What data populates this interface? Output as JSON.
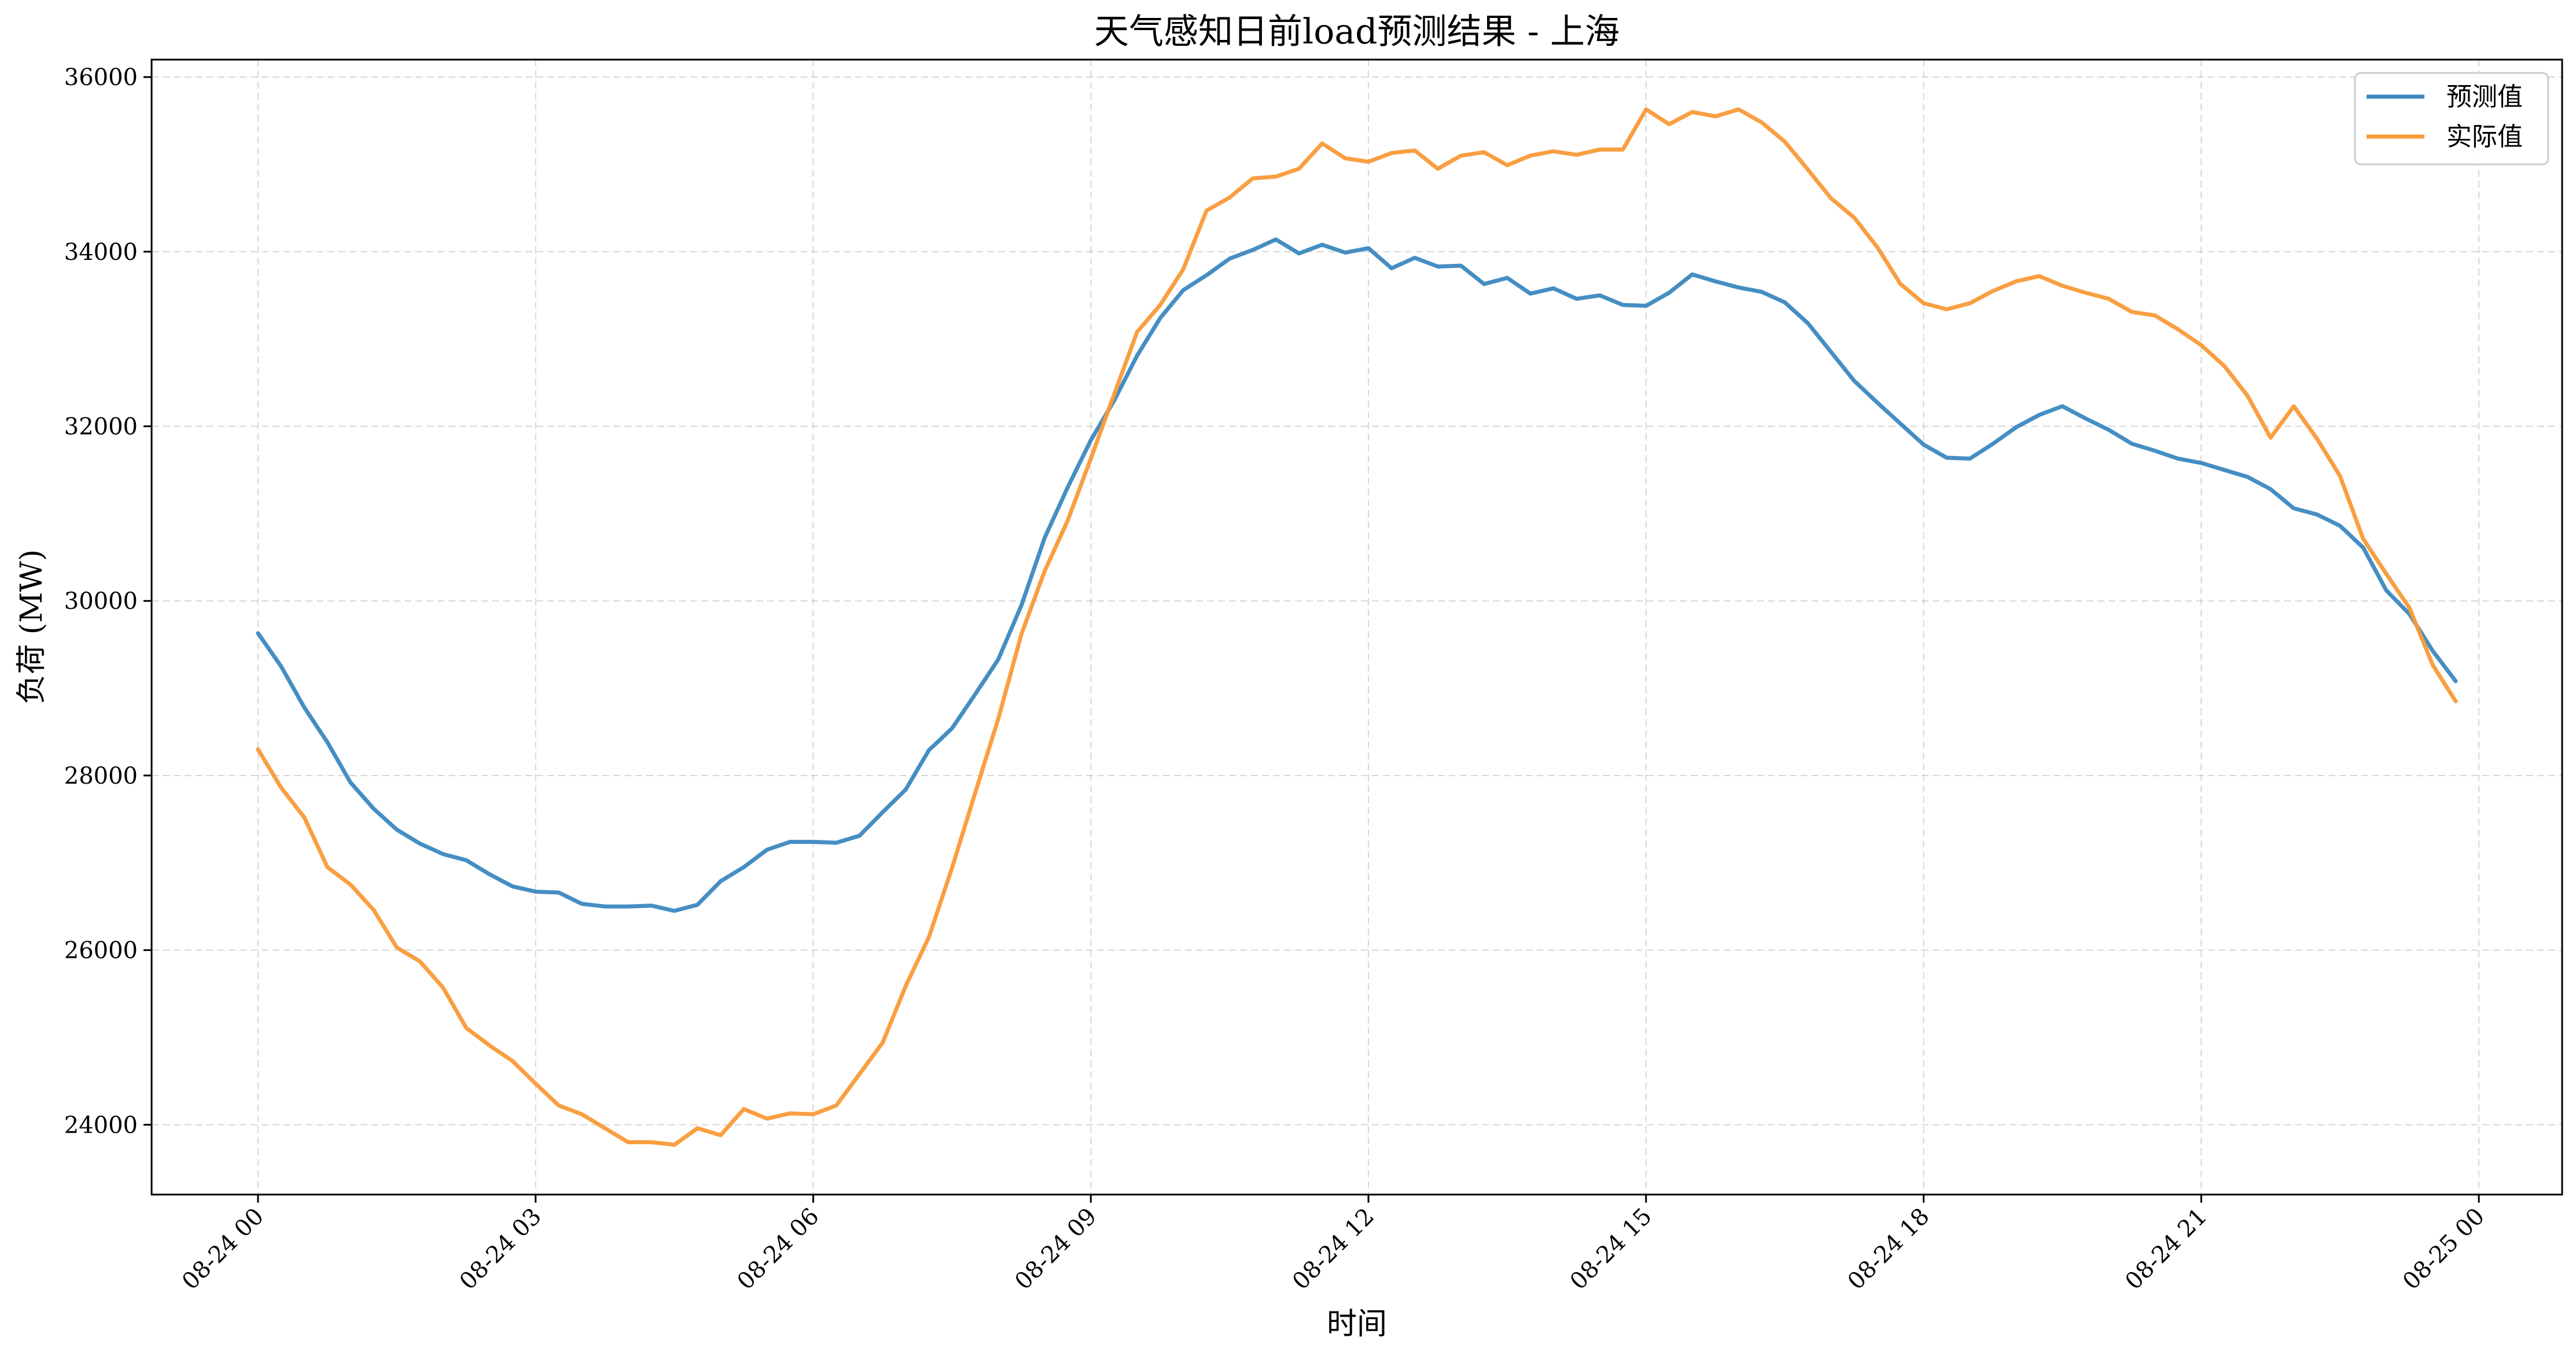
{
  "chart_data": {
    "type": "line",
    "title": "天气感知日前load预测结果 - 上海",
    "xlabel": "时间",
    "ylabel": "负荷 (MW)",
    "x_ticks": [
      "08-24 00",
      "08-24 03",
      "08-24 06",
      "08-24 09",
      "08-24 12",
      "08-24 15",
      "08-24 18",
      "08-24 21",
      "08-25 00"
    ],
    "y_ticks": [
      "24000",
      "26000",
      "28000",
      "30000",
      "32000",
      "34000",
      "36000"
    ],
    "ylim": [
      23200,
      36200
    ],
    "xlim_hours": [
      -1.15,
      24.9
    ],
    "interval_minutes": 15,
    "grid": true,
    "legend_position": "top-right",
    "colors": {
      "forecast": "#3b88c0",
      "actual": "#f99a38"
    },
    "series": [
      {
        "name": "预测值",
        "color": "#3b88c0",
        "values": [
          29630,
          29250,
          28780,
          28380,
          27920,
          27620,
          27380,
          27220,
          27100,
          27030,
          26870,
          26730,
          26670,
          26660,
          26530,
          26500,
          26500,
          26510,
          26450,
          26520,
          26790,
          26950,
          27150,
          27240,
          27240,
          27230,
          27310,
          27580,
          27840,
          28290,
          28540,
          28930,
          29330,
          29950,
          30720,
          31300,
          31840,
          32290,
          32810,
          33240,
          33560,
          33730,
          33920,
          34020,
          34140,
          33980,
          34080,
          33990,
          34040,
          33810,
          33930,
          33830,
          33840,
          33630,
          33700,
          33520,
          33580,
          33460,
          33500,
          33390,
          33380,
          33530,
          33740,
          33660,
          33590,
          33540,
          33420,
          33180,
          32850,
          32520,
          32270,
          32030,
          31790,
          31640,
          31630,
          31800,
          31990,
          32130,
          32230,
          32090,
          31960,
          31800,
          31720,
          31630,
          31580,
          31500,
          31420,
          31280,
          31060,
          30990,
          30860,
          30610,
          30120,
          29850,
          29430,
          29080
        ]
      },
      {
        "name": "实际值",
        "color": "#f99a38",
        "values": [
          28300,
          27860,
          27520,
          26950,
          26750,
          26460,
          26030,
          25870,
          25570,
          25110,
          24910,
          24730,
          24470,
          24220,
          24120,
          23960,
          23800,
          23800,
          23770,
          23960,
          23880,
          24180,
          24070,
          24130,
          24120,
          24220,
          24580,
          24940,
          25590,
          26150,
          26940,
          27800,
          28650,
          29620,
          30340,
          30920,
          31630,
          32360,
          33080,
          33390,
          33800,
          34470,
          34620,
          34840,
          34860,
          34950,
          35240,
          35070,
          35030,
          35130,
          35160,
          34950,
          35100,
          35140,
          34990,
          35100,
          35150,
          35110,
          35170,
          35170,
          35630,
          35460,
          35600,
          35550,
          35630,
          35480,
          35260,
          34940,
          34610,
          34390,
          34050,
          33630,
          33410,
          33340,
          33410,
          33550,
          33660,
          33720,
          33610,
          33530,
          33460,
          33310,
          33270,
          33110,
          32930,
          32690,
          32350,
          31870,
          32230,
          31860,
          31430,
          30710,
          30310,
          29920,
          29270,
          28850
        ]
      }
    ]
  }
}
